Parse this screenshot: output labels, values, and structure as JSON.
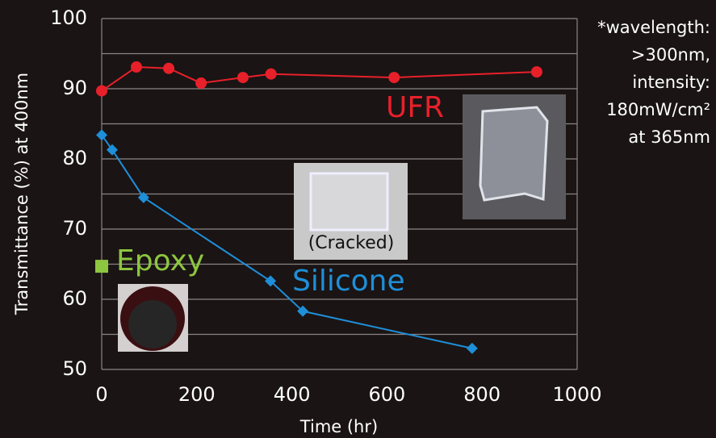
{
  "chart_data": {
    "type": "line",
    "xlabel": "Time (hr)",
    "ylabel": "Transmittance (%) at 400nm",
    "xlim": [
      0,
      1000
    ],
    "xticks": [
      0,
      200,
      400,
      600,
      800,
      1000
    ],
    "ylim": [
      50,
      100
    ],
    "yticks": [
      50,
      60,
      70,
      80,
      90,
      100
    ],
    "yminor_grid": [
      55,
      65,
      75,
      85,
      95
    ],
    "grid": true,
    "series": [
      {
        "name": "UFR",
        "color": "#e8202a",
        "marker": "circle",
        "x": [
          0,
          73,
          141,
          209,
          297,
          356,
          615,
          915
        ],
        "values": [
          89.7,
          93.1,
          92.9,
          90.8,
          91.6,
          92.1,
          91.6,
          92.4
        ]
      },
      {
        "name": "Silicone",
        "color": "#1e8fd8",
        "marker": "diamond",
        "x": [
          0,
          22,
          88,
          355,
          423,
          779
        ],
        "values": [
          83.4,
          81.3,
          74.5,
          62.6,
          58.3,
          53.0
        ]
      },
      {
        "name": "Epoxy",
        "color": "#8dc63f",
        "marker": "square",
        "x": [
          0
        ],
        "values": [
          64.7
        ]
      }
    ],
    "annotations": [
      "(Cracked)"
    ],
    "note": [
      "*wavelength:",
      ">300nm,",
      "intensity:",
      "180mW/cm²",
      "at 365nm"
    ]
  }
}
